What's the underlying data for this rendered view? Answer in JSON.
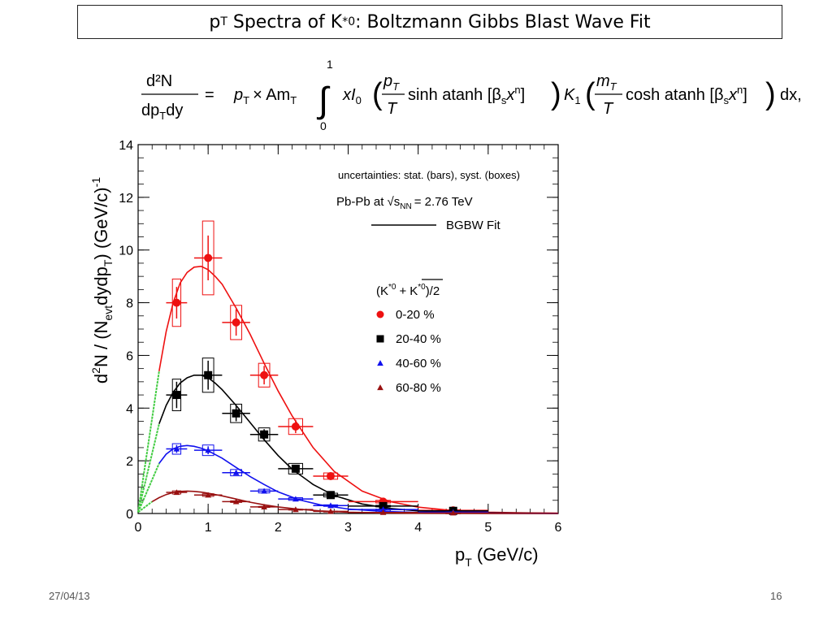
{
  "slide": {
    "title_main": "Spectra of K",
    "title_p": "p",
    "title_T": "T",
    "title_star0": "*0",
    "title_rest": ": Boltzmann Gibbs Blast Wave Fit",
    "date": "27/04/13",
    "page": "16"
  },
  "formula": {
    "lhs_num": "d²N",
    "lhs_den": "dp",
    "lhs_den_sub": "T",
    "lhs_den_tail": "dy",
    "eq": "=",
    "rhs_a": "p",
    "rhs_a_sub": "T",
    "rhs_b": "× Am",
    "rhs_b_sub": "T",
    "int_top": "1",
    "int_bottom": "0",
    "rhs_c": "xI",
    "rhs_c_sub": "0",
    "frac1_num": "p",
    "frac1_num_sub": "T",
    "frac1_den": "T",
    "rhs_d": "sinh atanh [β",
    "rhs_d_sub": "s",
    "rhs_d_tail": "x",
    "rhs_d_sup": "n",
    "rhs_d_close": "]",
    "rhs_e": "K",
    "rhs_e_sub": "1",
    "frac2_num": "m",
    "frac2_num_sub": "T",
    "frac2_den": "T",
    "rhs_f": "cosh atanh [β",
    "rhs_f_sub": "s",
    "rhs_f_tail": "x",
    "rhs_f_sup": "n",
    "rhs_f_close": "]",
    "rhs_g": "dx,"
  },
  "chart_data": {
    "type": "scatter",
    "xlim": [
      0,
      6
    ],
    "ylim": [
      0,
      14
    ],
    "xticks": [
      0,
      1,
      2,
      3,
      4,
      5,
      6
    ],
    "yticks": [
      0,
      2,
      4,
      6,
      8,
      10,
      12,
      14
    ],
    "xlabel": "p",
    "xlabel_sub": "T",
    "xlabel_unit": "(GeV/c)",
    "ylabel_a": "d",
    "ylabel_a_sup": "2",
    "ylabel_b": "N / (N",
    "ylabel_b_sub": "evt",
    "ylabel_c": "dydp",
    "ylabel_c_sub": "T",
    "ylabel_d": ") (GeV/c)",
    "ylabel_d_sup": "-1",
    "annotation": "uncertainties: stat. (bars), syst. (boxes)",
    "system_label": "Pb-Pb at √s",
    "system_sub": "NN",
    "system_tail": "= 2.76 TeV",
    "fit_label": "BGBW Fit",
    "species_label": "(K",
    "species_sup": "*0",
    "species_plus": "+",
    "species_bar": "K",
    "species_bar_sup": "*0",
    "species_tail": ")/2",
    "grid": false,
    "series": [
      {
        "name": "0-20 %",
        "color": "#ee1111",
        "marker": "circle",
        "x": [
          0.55,
          1.0,
          1.4,
          1.8,
          2.25,
          2.75,
          3.5,
          4.5
        ],
        "xerr": [
          0.15,
          0.2,
          0.2,
          0.2,
          0.25,
          0.25,
          0.5,
          0.5
        ],
        "y": [
          8.0,
          9.7,
          7.25,
          5.25,
          3.3,
          1.42,
          0.45,
          0.12
        ],
        "yerr": [
          0.6,
          0.85,
          0.5,
          0.35,
          0.25,
          0.08,
          0.05,
          0.02
        ],
        "syst": [
          0.9,
          1.4,
          0.65,
          0.45,
          0.3,
          0.12,
          0.05,
          0.02
        ],
        "fit_x": [
          0.3,
          0.4,
          0.5,
          0.6,
          0.7,
          0.8,
          0.9,
          1.0,
          1.1,
          1.2,
          1.4,
          1.6,
          1.8,
          2.0,
          2.2,
          2.5,
          2.8,
          3.2,
          3.6,
          4.0,
          4.5,
          5.0,
          5.5,
          6.0
        ],
        "fit_y": [
          5.4,
          6.9,
          8.0,
          8.75,
          9.15,
          9.35,
          9.38,
          9.25,
          9.0,
          8.7,
          7.8,
          6.8,
          5.7,
          4.65,
          3.7,
          2.5,
          1.6,
          0.85,
          0.45,
          0.24,
          0.11,
          0.05,
          0.025,
          0.012
        ]
      },
      {
        "name": "20-40 %",
        "color": "#000000",
        "marker": "square",
        "x": [
          0.55,
          1.0,
          1.4,
          1.8,
          2.25,
          2.75,
          3.5,
          4.5
        ],
        "xerr": [
          0.15,
          0.2,
          0.2,
          0.2,
          0.25,
          0.25,
          0.5,
          0.5
        ],
        "y": [
          4.5,
          5.25,
          3.8,
          3.0,
          1.7,
          0.7,
          0.28,
          0.1
        ],
        "yerr": [
          0.5,
          0.55,
          0.3,
          0.2,
          0.1,
          0.05,
          0.03,
          0.01
        ],
        "syst": [
          0.6,
          0.65,
          0.35,
          0.25,
          0.2,
          0.07,
          0.03,
          0.01
        ],
        "fit_x": [
          0.3,
          0.4,
          0.5,
          0.6,
          0.7,
          0.8,
          0.9,
          1.0,
          1.1,
          1.2,
          1.4,
          1.6,
          1.8,
          2.0,
          2.2,
          2.5,
          2.8,
          3.2,
          3.6,
          4.0,
          4.5,
          5.0,
          5.5,
          6.0
        ],
        "fit_y": [
          3.4,
          4.1,
          4.6,
          4.95,
          5.15,
          5.25,
          5.25,
          5.15,
          4.95,
          4.7,
          4.1,
          3.45,
          2.8,
          2.2,
          1.68,
          1.1,
          0.68,
          0.36,
          0.19,
          0.1,
          0.05,
          0.025,
          0.012,
          0.006
        ]
      },
      {
        "name": "40-60 %",
        "color": "#1111ee",
        "marker": "triangle",
        "x": [
          0.55,
          1.0,
          1.4,
          1.8,
          2.25,
          2.75,
          3.5,
          4.5
        ],
        "xerr": [
          0.15,
          0.2,
          0.2,
          0.2,
          0.25,
          0.25,
          0.5,
          0.5
        ],
        "y": [
          2.45,
          2.4,
          1.55,
          0.85,
          0.55,
          0.3,
          0.15,
          0.05
        ],
        "yerr": [
          0.15,
          0.15,
          0.08,
          0.05,
          0.04,
          0.02,
          0.01,
          0.01
        ],
        "syst": [
          0.2,
          0.2,
          0.12,
          0.07,
          0.05,
          0.03,
          0.01,
          0.01
        ],
        "fit_x": [
          0.3,
          0.4,
          0.5,
          0.6,
          0.7,
          0.8,
          0.9,
          1.0,
          1.2,
          1.4,
          1.6,
          1.8,
          2.0,
          2.3,
          2.6,
          3.0,
          3.5,
          4.0,
          5.0,
          6.0
        ],
        "fit_y": [
          1.9,
          2.25,
          2.45,
          2.55,
          2.58,
          2.55,
          2.48,
          2.38,
          2.1,
          1.75,
          1.4,
          1.1,
          0.82,
          0.52,
          0.33,
          0.17,
          0.08,
          0.04,
          0.01,
          0.003
        ]
      },
      {
        "name": "60-80 %",
        "color": "#991111",
        "marker": "triangle",
        "x": [
          0.55,
          1.0,
          1.4,
          1.8,
          2.25,
          2.75,
          3.5,
          4.5
        ],
        "xerr": [
          0.15,
          0.2,
          0.2,
          0.2,
          0.25,
          0.25,
          0.5,
          0.5
        ],
        "y": [
          0.8,
          0.7,
          0.45,
          0.25,
          0.15,
          0.08,
          0.04,
          0.02
        ],
        "yerr": [
          0.04,
          0.03,
          0.02,
          0.01,
          0.01,
          0.005,
          0.003,
          0.002
        ],
        "syst": [
          0.06,
          0.05,
          0.03,
          0.02,
          0.01,
          0.006,
          0.004,
          0.002
        ],
        "fit_x": [
          0.2,
          0.3,
          0.4,
          0.5,
          0.6,
          0.7,
          0.8,
          0.9,
          1.0,
          1.2,
          1.4,
          1.6,
          1.8,
          2.0,
          2.3,
          2.6,
          3.0,
          3.5,
          4.0,
          5.0,
          6.0
        ],
        "fit_y": [
          0.45,
          0.6,
          0.72,
          0.8,
          0.84,
          0.85,
          0.84,
          0.81,
          0.77,
          0.67,
          0.55,
          0.43,
          0.33,
          0.25,
          0.16,
          0.1,
          0.05,
          0.022,
          0.01,
          0.002,
          0.0005
        ]
      }
    ],
    "extrapolation_color": "#44cc44"
  }
}
